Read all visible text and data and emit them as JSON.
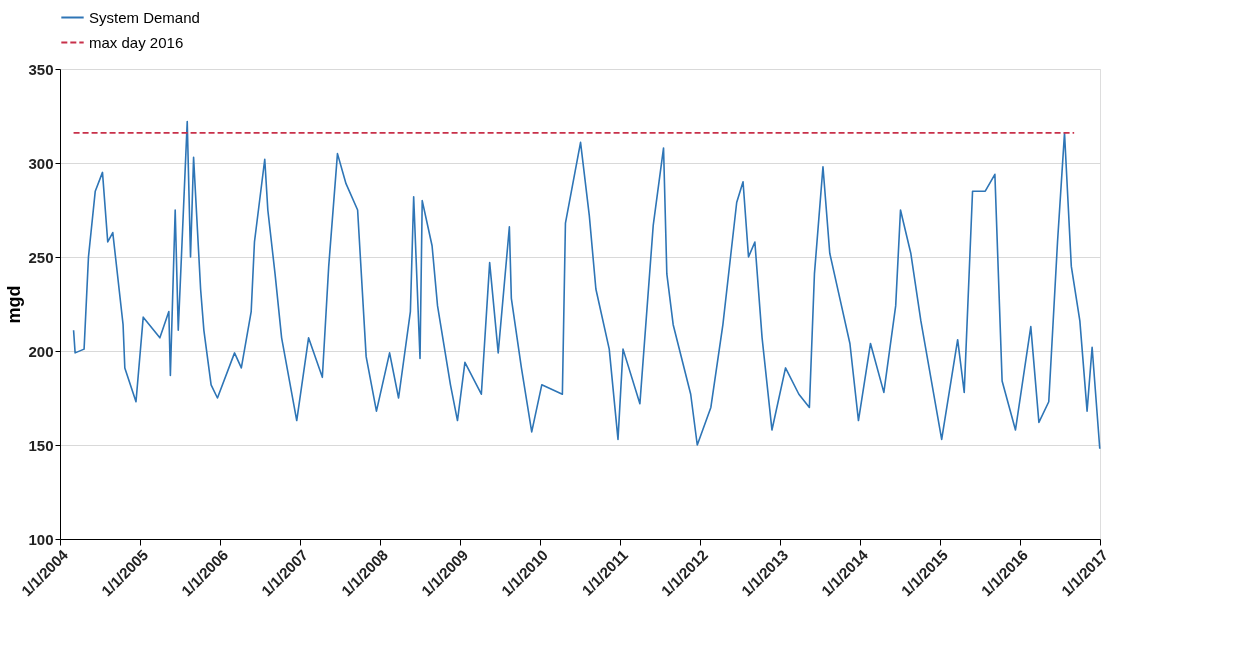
{
  "chart_data": {
    "type": "line",
    "ylabel": "mgd",
    "legend": "top",
    "grid": "y",
    "xlim": [
      "2004-01-01",
      "2017-01-01"
    ],
    "ylim": [
      100,
      350
    ],
    "yticks": [
      100,
      150,
      200,
      250,
      300,
      350
    ],
    "xticks": [
      {
        "value": "2004-01-01",
        "label": "1/1/2004"
      },
      {
        "value": "2005-01-01",
        "label": "1/1/2005"
      },
      {
        "value": "2006-01-01",
        "label": "1/1/2006"
      },
      {
        "value": "2007-01-01",
        "label": "1/1/2007"
      },
      {
        "value": "2008-01-01",
        "label": "1/1/2008"
      },
      {
        "value": "2009-01-01",
        "label": "1/1/2009"
      },
      {
        "value": "2010-01-01",
        "label": "1/1/2010"
      },
      {
        "value": "2011-01-01",
        "label": "1/1/2011"
      },
      {
        "value": "2012-01-01",
        "label": "1/1/2012"
      },
      {
        "value": "2013-01-01",
        "label": "1/1/2013"
      },
      {
        "value": "2014-01-01",
        "label": "1/1/2014"
      },
      {
        "value": "2015-01-01",
        "label": "1/1/2015"
      },
      {
        "value": "2016-01-01",
        "label": "1/1/2016"
      },
      {
        "value": "2017-01-01",
        "label": "1/1/2017"
      }
    ],
    "series": [
      {
        "name": "System Demand",
        "color": "#2e75b6",
        "line_style": "solid",
        "x": [
          "2004-03-03",
          "2004-03-10",
          "2004-04-20",
          "2004-05-10",
          "2004-06-10",
          "2004-07-13",
          "2004-08-06",
          "2004-08-29",
          "2004-10-15",
          "2004-10-23",
          "2004-12-13",
          "2005-01-15",
          "2005-04-01",
          "2005-05-12",
          "2005-05-19",
          "2005-06-10",
          "2005-06-24",
          "2005-08-04",
          "2005-08-19",
          "2005-09-02",
          "2005-10-04",
          "2005-10-19",
          "2005-11-21",
          "2005-12-20",
          "2006-03-08",
          "2006-04-08",
          "2006-05-23",
          "2006-06-07",
          "2006-07-24",
          "2006-08-07",
          "2006-09-09",
          "2006-10-09",
          "2006-12-17",
          "2007-02-09",
          "2007-04-13",
          "2007-05-12",
          "2007-06-21",
          "2007-07-30",
          "2007-09-21",
          "2007-10-30",
          "2007-12-16",
          "2008-02-14",
          "2008-03-26",
          "2008-05-19",
          "2008-06-03",
          "2008-07-02",
          "2008-07-12",
          "2008-08-26",
          "2008-09-20",
          "2008-11-18",
          "2008-12-20",
          "2009-01-23",
          "2009-04-08",
          "2009-05-16",
          "2009-06-24",
          "2009-08-14",
          "2009-08-23",
          "2009-10-08",
          "2009-11-24",
          "2010-01-09",
          "2010-04-13",
          "2010-04-27",
          "2010-07-05",
          "2010-08-14",
          "2010-09-13",
          "2010-11-13",
          "2010-12-23",
          "2011-01-15",
          "2011-04-02",
          "2011-06-02",
          "2011-07-19",
          "2011-08-03",
          "2011-09-01",
          "2011-11-20",
          "2011-12-20",
          "2012-02-20",
          "2012-04-15",
          "2012-06-17",
          "2012-07-16",
          "2012-08-10",
          "2012-09-08",
          "2012-10-11",
          "2012-11-25",
          "2013-01-26",
          "2013-03-28",
          "2013-05-15",
          "2013-06-07",
          "2013-07-16",
          "2013-08-16",
          "2013-10-01",
          "2013-11-16",
          "2013-12-25",
          "2014-02-18",
          "2014-04-20",
          "2014-06-13",
          "2014-07-05",
          "2014-08-21",
          "2014-10-06",
          "2015-01-09",
          "2015-03-23",
          "2015-04-22",
          "2015-05-30",
          "2015-07-27",
          "2015-09-09",
          "2015-10-12",
          "2015-12-12",
          "2016-02-20",
          "2016-03-28",
          "2016-05-12",
          "2016-06-21",
          "2016-07-23",
          "2016-08-23",
          "2016-10-01",
          "2016-11-03",
          "2016-11-26",
          "2016-12-31"
        ],
        "values": [
          211,
          199,
          201,
          250,
          285,
          295,
          258,
          263,
          214,
          191,
          173,
          218,
          207,
          221,
          187,
          275,
          211,
          322,
          250,
          303,
          233,
          211,
          182,
          175,
          199,
          191,
          221,
          258,
          302,
          275,
          241,
          207,
          163,
          207,
          186,
          245,
          305,
          289,
          275,
          197,
          168,
          199,
          175,
          221,
          282,
          196,
          280,
          256,
          224,
          182,
          163,
          194,
          177,
          247,
          199,
          266,
          228,
          191,
          157,
          182,
          177,
          268,
          311,
          272,
          233,
          201,
          153,
          201,
          172,
          267,
          308,
          241,
          214,
          177,
          150,
          170,
          214,
          279,
          290,
          250,
          258,
          207,
          158,
          191,
          177,
          170,
          241,
          298,
          252,
          228,
          204,
          163,
          204,
          178,
          224,
          275,
          252,
          216,
          153,
          206,
          178,
          285,
          285,
          294,
          184,
          158,
          213,
          162,
          173,
          258,
          316,
          245,
          216,
          168,
          202,
          148
        ]
      },
      {
        "name": "max day 2016",
        "color": "#c8304a",
        "line_style": "dashed",
        "x": [
          "2004-03-03",
          "2016-09-05"
        ],
        "values": [
          316,
          316
        ]
      }
    ]
  }
}
